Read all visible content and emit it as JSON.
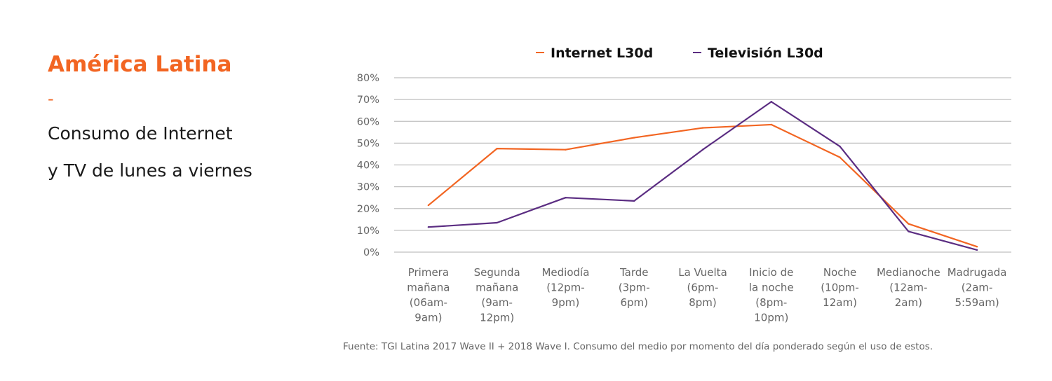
{
  "header": {
    "title": "América Latina",
    "separator": "-",
    "subtitle_line1": "Consumo de Internet",
    "subtitle_line2": "y TV de lunes a viernes"
  },
  "colors": {
    "internet": "#f26522",
    "television": "#5b2d82",
    "grid": "#bfbfbf",
    "accent": "#f26522"
  },
  "chart_data": {
    "type": "line",
    "categories": [
      [
        "Primera",
        "mañana",
        "(06am-",
        "9am)"
      ],
      [
        "Segunda",
        "mañana",
        "(9am-",
        "12pm)"
      ],
      [
        "Mediodía",
        "(12pm-",
        "9pm)"
      ],
      [
        "Tarde",
        "(3pm-",
        "6pm)"
      ],
      [
        "La Vuelta",
        "(6pm-",
        "8pm)"
      ],
      [
        "Inicio de",
        "la noche",
        "(8pm-",
        "10pm)"
      ],
      [
        "Noche",
        "(10pm-",
        "12am)"
      ],
      [
        "Medianoche",
        "(12am-",
        "2am)"
      ],
      [
        "Madrugada",
        "(2am-",
        "5:59am)"
      ]
    ],
    "yticks": [
      "0%",
      "10%",
      "20%",
      "30%",
      "40%",
      "50%",
      "60%",
      "70%",
      "80%"
    ],
    "ylim": [
      0,
      80
    ],
    "grid": true,
    "legend_position": "top",
    "series": [
      {
        "name": "Internet L30d",
        "color": "#f26522",
        "values": [
          21.5,
          47.5,
          47,
          52.5,
          57,
          58.5,
          43.5,
          13,
          2.5
        ]
      },
      {
        "name": "Televisión L30d",
        "color": "#5b2d82",
        "values": [
          11.5,
          13.5,
          25,
          23.5,
          47,
          69,
          48.5,
          9.5,
          1
        ]
      }
    ]
  },
  "source": "Fuente: TGI Latina 2017 Wave II + 2018 Wave I. Consumo del medio por momento del día ponderado según el uso de estos."
}
